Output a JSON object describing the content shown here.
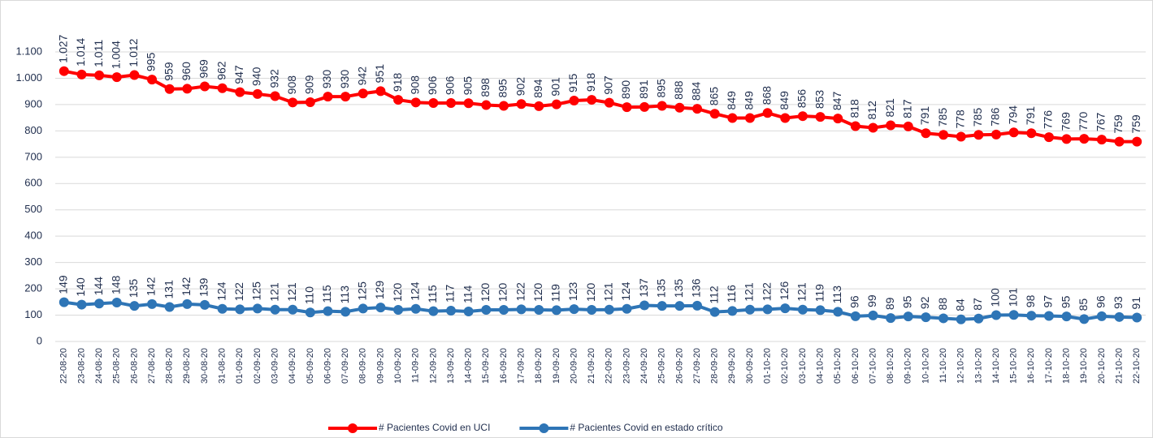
{
  "chart_data": {
    "type": "line",
    "categories": [
      "22-08-20",
      "23-08-20",
      "24-08-20",
      "25-08-20",
      "26-08-20",
      "27-08-20",
      "28-08-20",
      "29-08-20",
      "30-08-20",
      "31-08-20",
      "01-09-20",
      "02-09-20",
      "03-09-20",
      "04-09-20",
      "05-09-20",
      "06-09-20",
      "07-09-20",
      "08-09-20",
      "09-09-20",
      "10-09-20",
      "11-09-20",
      "12-09-20",
      "13-09-20",
      "14-09-20",
      "15-09-20",
      "16-09-20",
      "17-09-20",
      "18-09-20",
      "19-09-20",
      "20-09-20",
      "21-09-20",
      "22-09-20",
      "23-09-20",
      "24-09-20",
      "25-09-20",
      "26-09-20",
      "27-09-20",
      "28-09-20",
      "29-09-20",
      "30-09-20",
      "01-10-20",
      "02-10-20",
      "03-10-20",
      "04-10-20",
      "05-10-20",
      "06-10-20",
      "07-10-20",
      "08-10-20",
      "09-10-20",
      "10-10-20",
      "11-10-20",
      "12-10-20",
      "13-10-20",
      "14-10-20",
      "15-10-20",
      "16-10-20",
      "17-10-20",
      "18-10-20",
      "19-10-20",
      "20-10-20",
      "21-10-20",
      "22-10-20"
    ],
    "series": [
      {
        "name": "# Pacientes Covid en UCI",
        "color": "#ff0000",
        "values": [
          1027,
          1014,
          1011,
          1004,
          1012,
          995,
          959,
          960,
          969,
          962,
          947,
          940,
          932,
          908,
          909,
          930,
          930,
          942,
          951,
          918,
          908,
          906,
          906,
          905,
          898,
          895,
          902,
          894,
          901,
          915,
          918,
          907,
          890,
          891,
          895,
          888,
          884,
          865,
          849,
          849,
          868,
          849,
          856,
          853,
          847,
          818,
          812,
          821,
          817,
          791,
          785,
          778,
          785,
          786,
          794,
          791,
          776,
          769,
          770,
          767,
          759,
          759
        ],
        "value_labels": [
          "1.027",
          "1.014",
          "1.011",
          "1.004",
          "1.012",
          "995",
          "959",
          "960",
          "969",
          "962",
          "947",
          "940",
          "932",
          "908",
          "909",
          "930",
          "930",
          "942",
          "951",
          "918",
          "908",
          "906",
          "906",
          "905",
          "898",
          "895",
          "902",
          "894",
          "901",
          "915",
          "918",
          "907",
          "890",
          "891",
          "895",
          "888",
          "884",
          "865",
          "849",
          "849",
          "868",
          "849",
          "856",
          "853",
          "847",
          "818",
          "812",
          "821",
          "817",
          "791",
          "785",
          "778",
          "785",
          "786",
          "794",
          "791",
          "776",
          "769",
          "770",
          "767",
          "759",
          "759"
        ]
      },
      {
        "name": "# Pacientes Covid en estado crítico",
        "color": "#2e75b6",
        "values": [
          149,
          140,
          144,
          148,
          135,
          142,
          131,
          142,
          139,
          124,
          122,
          125,
          121,
          121,
          110,
          115,
          113,
          125,
          129,
          120,
          124,
          115,
          117,
          114,
          120,
          120,
          122,
          120,
          119,
          123,
          120,
          121,
          124,
          137,
          135,
          135,
          136,
          112,
          116,
          121,
          122,
          126,
          121,
          119,
          113,
          96,
          99,
          89,
          95,
          92,
          88,
          84,
          87,
          100,
          101,
          98,
          97,
          95,
          85,
          96,
          93,
          91
        ]
      }
    ],
    "ylim": [
      0,
      1100
    ],
    "yticks": [
      0,
      100,
      200,
      300,
      400,
      500,
      600,
      700,
      800,
      900,
      {
        "value": 1000,
        "label": "1.000"
      },
      {
        "value": 1100,
        "label": "1.100"
      }
    ],
    "grid": true,
    "legend": "bottom"
  }
}
